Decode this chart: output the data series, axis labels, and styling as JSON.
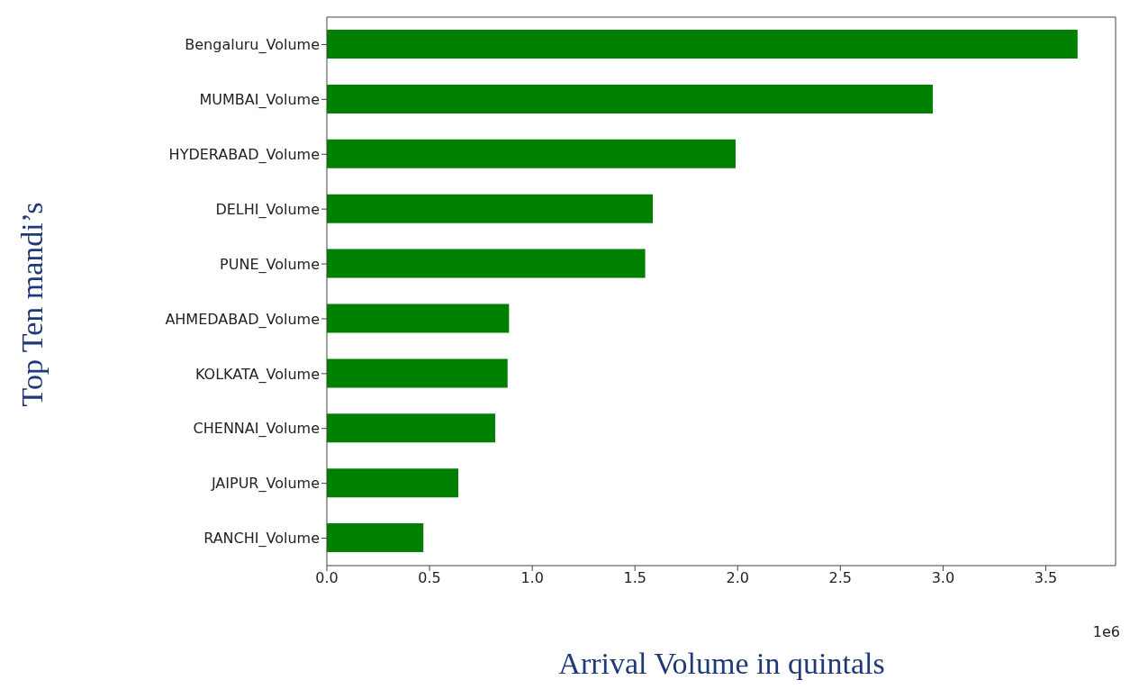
{
  "chart_data": {
    "type": "bar",
    "orientation": "horizontal",
    "xlabel": "Arrival Volume in quintals",
    "ylabel": "Top Ten mandi’s",
    "categories": [
      "Bengaluru_Volume",
      "MUMBAI_Volume",
      "HYDERABAD_Volume",
      "DELHI_Volume",
      "PUNE_Volume",
      "AHMEDABAD_Volume",
      "KOLKATA_Volume",
      "CHENNAI_Volume",
      "JAIPUR_Volume",
      "RANCHI_Volume"
    ],
    "series": [
      {
        "color": "#008000",
        "values": [
          3.655,
          2.95,
          1.99,
          1.587,
          1.55,
          0.887,
          0.88,
          0.82,
          0.64,
          0.47
        ]
      }
    ],
    "xlim": [
      0,
      3.84
    ],
    "xticks": [
      {
        "value": 0,
        "label": "0.0"
      },
      0.5,
      {
        "value": 1,
        "label": "1.0"
      },
      1.5,
      {
        "value": 2,
        "label": "2.0"
      },
      2.5,
      {
        "value": 3,
        "label": "3.0"
      },
      3.5
    ],
    "annotations": [
      "1e6"
    ],
    "grid": false,
    "legend": false
  }
}
